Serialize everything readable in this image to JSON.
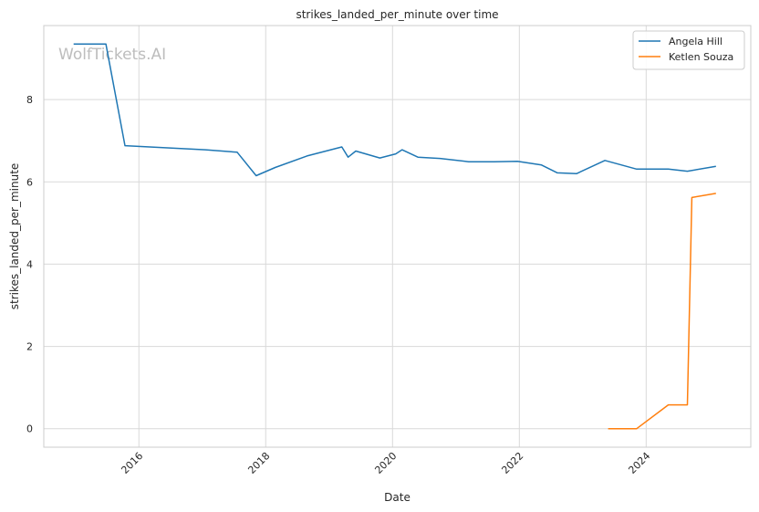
{
  "chart_data": {
    "type": "line",
    "title": "strikes_landed_per_minute over time",
    "xlabel": "Date",
    "ylabel": "strikes_landed_per_minute",
    "watermark": "WolfTickets.AI",
    "xlim": [
      2014.5,
      2025.65
    ],
    "ylim": [
      -0.45,
      9.8
    ],
    "x_ticks": [
      2016,
      2018,
      2020,
      2022,
      2024
    ],
    "x_tick_labels": [
      "2016",
      "2018",
      "2020",
      "2022",
      "2024"
    ],
    "y_ticks": [
      0,
      2,
      4,
      6,
      8
    ],
    "y_tick_labels": [
      "0",
      "2",
      "4",
      "6",
      "8"
    ],
    "grid": true,
    "legend_position": "top-right",
    "series": [
      {
        "name": "Angela Hill",
        "color": "#1f77b4",
        "x": [
          2014.97,
          2015.48,
          2015.78,
          2017.05,
          2017.55,
          2017.85,
          2018.15,
          2018.65,
          2019.2,
          2019.3,
          2019.42,
          2019.8,
          2020.05,
          2020.15,
          2020.4,
          2020.75,
          2021.2,
          2021.6,
          2021.97,
          2022.35,
          2022.6,
          2022.9,
          2023.35,
          2023.85,
          2024.35,
          2024.65,
          2025.1
        ],
        "y": [
          9.35,
          9.35,
          6.88,
          6.78,
          6.72,
          6.15,
          6.35,
          6.63,
          6.85,
          6.6,
          6.75,
          6.58,
          6.68,
          6.78,
          6.6,
          6.57,
          6.49,
          6.49,
          6.5,
          6.41,
          6.22,
          6.2,
          6.52,
          6.31,
          6.31,
          6.26,
          6.38
        ]
      },
      {
        "name": "Ketlen Souza",
        "color": "#ff7f0e",
        "x": [
          2023.4,
          2023.85,
          2024.35,
          2024.65,
          2024.72,
          2025.1
        ],
        "y": [
          0.0,
          0.0,
          0.58,
          0.58,
          5.62,
          5.72
        ]
      }
    ]
  }
}
